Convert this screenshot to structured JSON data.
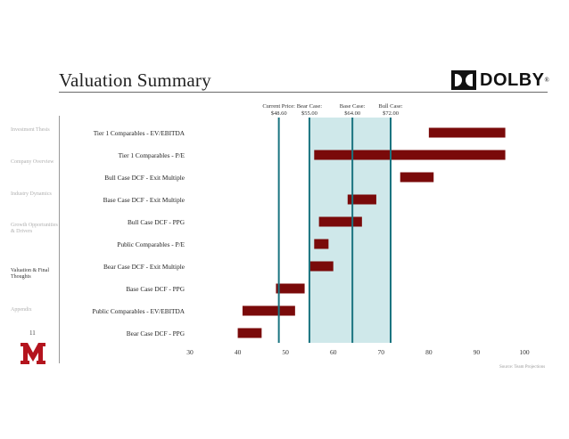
{
  "header": {
    "title": "Valuation Summary",
    "logo_text": "DOLBY",
    "logo_mark": "®"
  },
  "sidebar": {
    "items": [
      {
        "label": "Investment Thesis",
        "active": false
      },
      {
        "label": "Company Overview",
        "active": false
      },
      {
        "label": "Industry Dynamics",
        "active": false
      },
      {
        "label": "Growth Opportunities & Drivers",
        "active": false
      },
      {
        "label": "Valuation & Final Thoughts",
        "active": true
      },
      {
        "label": "Appendix",
        "active": false
      }
    ],
    "page_number": "11"
  },
  "footer": {
    "source": "Source: Team Projections"
  },
  "colors": {
    "bar": "#7a0a0a",
    "band": "#cfe8ea",
    "line": "#1a7480",
    "muRed": "#b4141e"
  },
  "chart_data": {
    "type": "bar",
    "orientation": "horizontal-range",
    "categories": [
      "Tier 1 Comparables - EV/EBITDA",
      "Tier 1 Comparables - P/E",
      "Bull Case DCF - Exit Multiple",
      "Base Case DCF - Exit Multiple",
      "Bull Case DCF - PPG",
      "Public Comparables - P/E",
      "Bear Case DCF - Exit Multiple",
      "Base Case DCF - PPG",
      "Public Comparables - EV/EBITDA",
      "Bear Case DCF - PPG"
    ],
    "ranges": [
      [
        80,
        96
      ],
      [
        56,
        96
      ],
      [
        74,
        81
      ],
      [
        63,
        69
      ],
      [
        57,
        66
      ],
      [
        56,
        59
      ],
      [
        55,
        60
      ],
      [
        48,
        54
      ],
      [
        41,
        52
      ],
      [
        40,
        45
      ]
    ],
    "xlim": [
      30,
      100
    ],
    "xticks": [
      30,
      40,
      50,
      60,
      70,
      80,
      90,
      100
    ],
    "band": [
      55,
      72
    ],
    "reference_lines": [
      {
        "value": 48.6,
        "label_line1": "Current Price:",
        "label_line2": "$48.60"
      },
      {
        "value": 55.0,
        "label_line1": "Bear Case:",
        "label_line2": "$55.00"
      },
      {
        "value": 64.0,
        "label_line1": "Base Case:",
        "label_line2": "$64.00"
      },
      {
        "value": 72.0,
        "label_line1": "Bull Case:",
        "label_line2": "$72.00"
      }
    ]
  }
}
